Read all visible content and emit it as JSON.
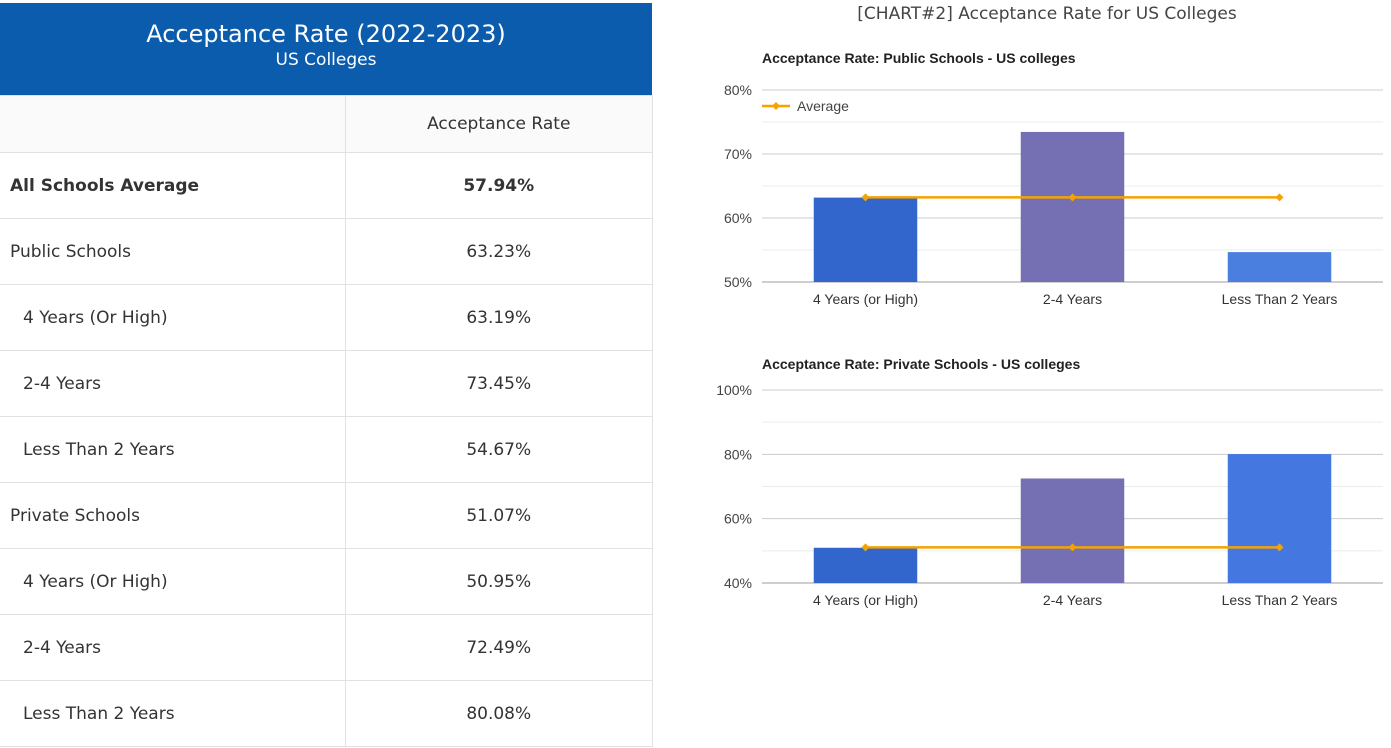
{
  "table": {
    "title": "Acceptance Rate (2022-2023)",
    "subtitle": "US Colleges",
    "column_header": "Acceptance Rate",
    "rows": [
      {
        "label": "All Schools Average",
        "value": "57.94%"
      },
      {
        "label": "Public Schools",
        "value": "63.23%"
      },
      {
        "label": "4 Years (Or High)",
        "value": "63.19%"
      },
      {
        "label": "2-4 Years",
        "value": "73.45%"
      },
      {
        "label": "Less Than 2 Years",
        "value": "54.67%"
      },
      {
        "label": "Private Schools",
        "value": "51.07%"
      },
      {
        "label": "4 Years (Or High)",
        "value": "50.95%"
      },
      {
        "label": "2-4 Years",
        "value": "72.49%"
      },
      {
        "label": "Less Than 2 Years",
        "value": "80.08%"
      }
    ]
  },
  "charts_title": "[CHART#2] Acceptance Rate for US Colleges",
  "chart_data": [
    {
      "type": "bar",
      "title": "Acceptance Rate: Public Schools - US colleges",
      "categories": [
        "4 Years (or High)",
        "2-4 Years",
        "Less Than 2 Years"
      ],
      "values": [
        63.19,
        73.45,
        54.67
      ],
      "bar_colors": [
        "#3366cc",
        "#7570b3",
        "#4a7fe0"
      ],
      "line_series": {
        "name": "Average",
        "values": [
          63.23,
          63.23,
          63.23
        ],
        "color": "#f5a300"
      },
      "ylim": [
        50,
        80
      ],
      "yticks": [
        50,
        60,
        70,
        80
      ],
      "ytick_labels": [
        "50%",
        "60%",
        "70%",
        "80%"
      ],
      "legend_position": "top-left",
      "grid": true
    },
    {
      "type": "bar",
      "title": "Acceptance Rate: Private Schools - US colleges",
      "categories": [
        "4 Years (or High)",
        "2-4 Years",
        "Less Than 2 Years"
      ],
      "values": [
        50.95,
        72.49,
        80.08
      ],
      "bar_colors": [
        "#3366cc",
        "#7570b3",
        "#4477e0"
      ],
      "line_series": {
        "name": "Average",
        "values": [
          51.07,
          51.07,
          51.07
        ],
        "color": "#f5a300"
      },
      "ylim": [
        40,
        100
      ],
      "yticks": [
        40,
        60,
        80,
        100
      ],
      "ytick_labels": [
        "40%",
        "60%",
        "80%",
        "100%"
      ],
      "grid": true
    }
  ]
}
